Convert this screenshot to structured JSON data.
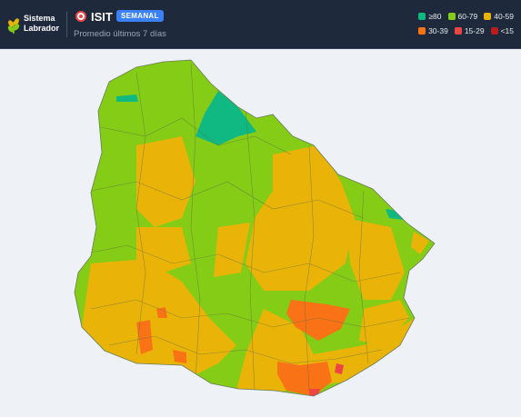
{
  "header": {
    "brand": "Sistema Labrador",
    "title": "ISIT",
    "badge": "SEMANAL",
    "subtitle": "Promedio últimos 7 días"
  },
  "legend": [
    {
      "label": "≥80",
      "color": "#10b981"
    },
    {
      "label": "60-79",
      "color": "#84cc16"
    },
    {
      "label": "40-59",
      "color": "#eab308"
    },
    {
      "label": "30-39",
      "color": "#f97316"
    },
    {
      "label": "15-29",
      "color": "#ef4444"
    },
    {
      "label": "<15",
      "color": "#b91c1c"
    }
  ]
}
